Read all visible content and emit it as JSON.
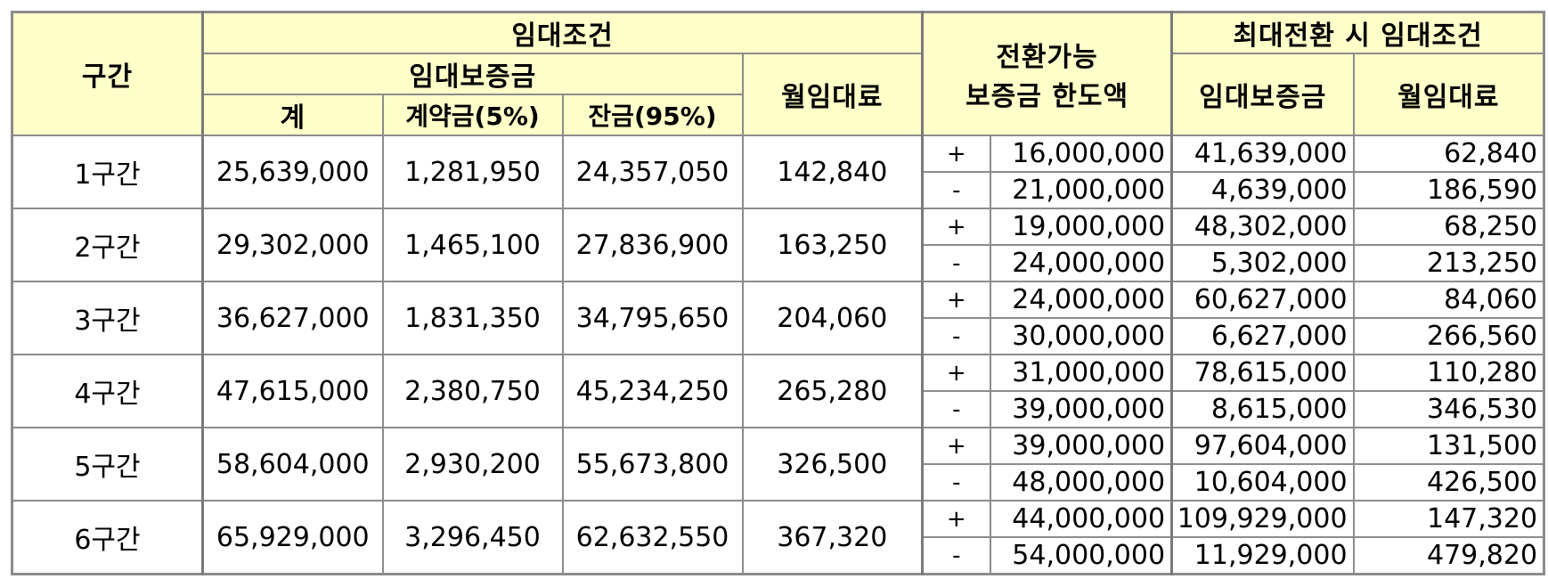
{
  "headers": {
    "section": "구간",
    "rental_conditions": "임대조건",
    "deposit": "임대보증금",
    "total": "계",
    "down_payment": "계약금(5%)",
    "balance": "잔금(95%)",
    "monthly_rent": "월임대료",
    "convertible_line1": "전환가능",
    "convertible_line2": "보증금 한도액",
    "max_conversion": "최대전환 시 임대조건",
    "max_deposit": "임대보증금",
    "max_monthly_rent": "월임대료"
  },
  "rows": [
    {
      "section": "1구간",
      "total": "25,639,000",
      "down": "1,281,950",
      "balance": "24,357,050",
      "rent": "142,840",
      "plus": {
        "sign": "+",
        "limit": "16,000,000",
        "deposit": "41,639,000",
        "rent": "62,840"
      },
      "minus": {
        "sign": "-",
        "limit": "21,000,000",
        "deposit": "4,639,000",
        "rent": "186,590"
      }
    },
    {
      "section": "2구간",
      "total": "29,302,000",
      "down": "1,465,100",
      "balance": "27,836,900",
      "rent": "163,250",
      "plus": {
        "sign": "+",
        "limit": "19,000,000",
        "deposit": "48,302,000",
        "rent": "68,250"
      },
      "minus": {
        "sign": "-",
        "limit": "24,000,000",
        "deposit": "5,302,000",
        "rent": "213,250"
      }
    },
    {
      "section": "3구간",
      "total": "36,627,000",
      "down": "1,831,350",
      "balance": "34,795,650",
      "rent": "204,060",
      "plus": {
        "sign": "+",
        "limit": "24,000,000",
        "deposit": "60,627,000",
        "rent": "84,060"
      },
      "minus": {
        "sign": "-",
        "limit": "30,000,000",
        "deposit": "6,627,000",
        "rent": "266,560"
      }
    },
    {
      "section": "4구간",
      "total": "47,615,000",
      "down": "2,380,750",
      "balance": "45,234,250",
      "rent": "265,280",
      "plus": {
        "sign": "+",
        "limit": "31,000,000",
        "deposit": "78,615,000",
        "rent": "110,280"
      },
      "minus": {
        "sign": "-",
        "limit": "39,000,000",
        "deposit": "8,615,000",
        "rent": "346,530"
      }
    },
    {
      "section": "5구간",
      "total": "58,604,000",
      "down": "2,930,200",
      "balance": "55,673,800",
      "rent": "326,500",
      "plus": {
        "sign": "+",
        "limit": "39,000,000",
        "deposit": "97,604,000",
        "rent": "131,500"
      },
      "minus": {
        "sign": "-",
        "limit": "48,000,000",
        "deposit": "10,604,000",
        "rent": "426,500"
      }
    },
    {
      "section": "6구간",
      "total": "65,929,000",
      "down": "3,296,450",
      "balance": "62,632,550",
      "rent": "367,320",
      "plus": {
        "sign": "+",
        "limit": "44,000,000",
        "deposit": "109,929,000",
        "rent": "147,320"
      },
      "minus": {
        "sign": "-",
        "limit": "54,000,000",
        "deposit": "11,929,000",
        "rent": "479,820"
      }
    }
  ]
}
